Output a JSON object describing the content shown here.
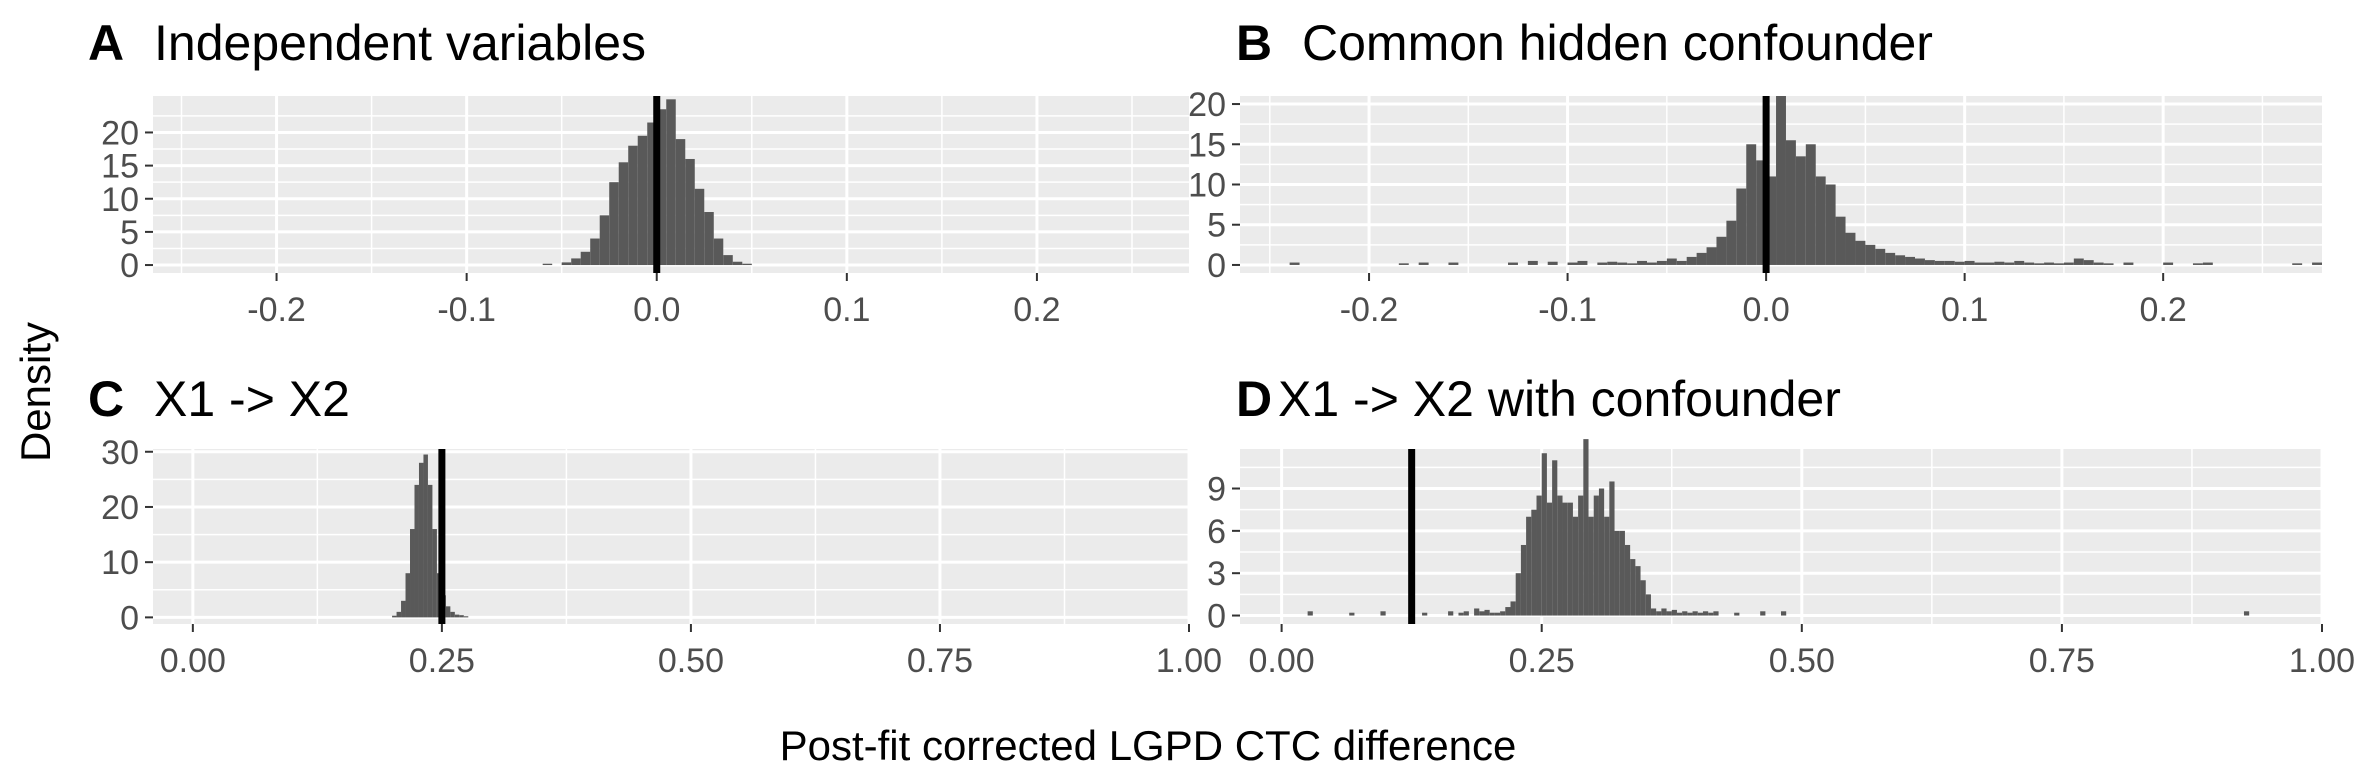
{
  "figure": {
    "xlabel": "Post-fit corrected LGPD CTC difference",
    "ylabel": "Density"
  },
  "chart_data": [
    {
      "type": "histogram",
      "tag": "A",
      "title": "Independent variables",
      "xlim": [
        -0.265,
        0.28
      ],
      "ylim": [
        -1.2,
        25.5
      ],
      "xticks": [
        -0.2,
        -0.1,
        0.0,
        0.1,
        0.2
      ],
      "xtick_labels": [
        "-0.2",
        "-0.1",
        "0.0",
        "0.1",
        "0.2"
      ],
      "yticks": [
        0,
        5,
        10,
        15,
        20
      ],
      "yminor": [
        2.5,
        7.5,
        12.5,
        17.5,
        22.5
      ],
      "xminor": [
        -0.25,
        -0.15,
        -0.05,
        0.05,
        0.15,
        0.25
      ],
      "vline": 0.0,
      "bin_width": 0.005,
      "bin_start": -0.06,
      "values": [
        0.2,
        0.0,
        0.4,
        1.0,
        2.0,
        4.0,
        7.5,
        12.5,
        15.5,
        18.0,
        19.5,
        21.5,
        23.5,
        25.0,
        19.0,
        16.0,
        11.5,
        8.0,
        4.0,
        1.5,
        0.5,
        0.2
      ],
      "grid": true
    },
    {
      "type": "histogram",
      "tag": "B",
      "title": "Common hidden confounder",
      "xlim": [
        -0.265,
        0.28
      ],
      "ylim": [
        -1.0,
        21.0
      ],
      "xticks": [
        -0.2,
        -0.1,
        0.0,
        0.1,
        0.2
      ],
      "xtick_labels": [
        "-0.2",
        "-0.1",
        "0.0",
        "0.1",
        "0.2"
      ],
      "yticks": [
        0,
        5,
        10,
        15,
        20
      ],
      "yminor": [
        2.5,
        7.5,
        12.5,
        17.5
      ],
      "xminor": [
        -0.25,
        -0.15,
        -0.05,
        0.05,
        0.15,
        0.25
      ],
      "vline": 0.0,
      "bin_width": 0.005,
      "bin_start": -0.24,
      "values": [
        0.3,
        0,
        0,
        0,
        0,
        0,
        0,
        0,
        0,
        0,
        0,
        0.2,
        0,
        0.3,
        0,
        0,
        0.3,
        0,
        0,
        0,
        0,
        0,
        0.3,
        0,
        0.5,
        0,
        0.4,
        0,
        0.3,
        0.5,
        0,
        0.3,
        0.4,
        0.3,
        0.2,
        0.5,
        0.3,
        0.5,
        0.8,
        0.5,
        1.0,
        1.5,
        2.2,
        3.5,
        5.5,
        9.5,
        15.0,
        13.0,
        11.0,
        21.0,
        15.5,
        13.5,
        15.0,
        11.0,
        10.0,
        6.0,
        4.0,
        3.0,
        2.5,
        2.0,
        1.5,
        1.2,
        1.0,
        0.8,
        0.6,
        0.5,
        0.5,
        0.4,
        0.5,
        0.3,
        0.3,
        0.4,
        0.3,
        0.5,
        0.3,
        0.2,
        0.3,
        0.2,
        0.3,
        0.8,
        0.6,
        0.3,
        0.2,
        0,
        0.3,
        0,
        0,
        0,
        0.3,
        0,
        0,
        0.2,
        0.3,
        0,
        0,
        0,
        0,
        0,
        0,
        0,
        0,
        0.2,
        0,
        0.3
      ],
      "grid": true
    },
    {
      "type": "histogram",
      "tag": "C",
      "title": "X1 -> X2",
      "xlim": [
        -0.04,
        1.0
      ],
      "ylim": [
        -1.2,
        30.5
      ],
      "xticks": [
        0.0,
        0.25,
        0.5,
        0.75,
        1.0
      ],
      "xtick_labels": [
        "0.00",
        "0.25",
        "0.50",
        "0.75",
        "1.00"
      ],
      "yticks": [
        0,
        10,
        20,
        30
      ],
      "yminor": [
        5,
        15,
        25
      ],
      "xminor": [
        0.125,
        0.375,
        0.625,
        0.875
      ],
      "vline": 0.25,
      "bin_width": 0.0045,
      "bin_start": 0.2,
      "values": [
        0.3,
        1.0,
        3.0,
        8.0,
        16.0,
        24.0,
        28.0,
        29.5,
        24.0,
        16.0,
        8.0,
        4.0,
        2.0,
        1.0,
        0.5,
        0.4,
        0.2
      ],
      "grid": true
    },
    {
      "type": "histogram",
      "tag": "D",
      "title": "X1 -> X2 with confounder",
      "xlim": [
        -0.04,
        1.0
      ],
      "ylim": [
        -0.6,
        11.8
      ],
      "xticks": [
        0.0,
        0.25,
        0.5,
        0.75,
        1.0
      ],
      "xtick_labels": [
        "0.00",
        "0.25",
        "0.50",
        "0.75",
        "1.00"
      ],
      "yticks": [
        0,
        3,
        6,
        9
      ],
      "yminor": [
        1.5,
        4.5,
        7.5,
        10.5
      ],
      "xminor": [
        0.125,
        0.375,
        0.625,
        0.875
      ],
      "vline": 0.125,
      "bin_width": 0.005,
      "bin_start": 0.025,
      "values": [
        0.3,
        0,
        0,
        0,
        0,
        0,
        0,
        0,
        0.2,
        0,
        0,
        0,
        0,
        0,
        0.3,
        0,
        0,
        0,
        0,
        0,
        0,
        0,
        0.2,
        0,
        0,
        0,
        0,
        0.3,
        0,
        0.2,
        0.3,
        0,
        0.5,
        0.3,
        0.4,
        0.2,
        0.2,
        0.3,
        0.6,
        1.0,
        3.0,
        5.0,
        7.0,
        7.5,
        8.5,
        11.5,
        8.0,
        11.0,
        8.5,
        8.0,
        8.0,
        7.0,
        8.5,
        12.5,
        7.0,
        8.5,
        9.0,
        7.0,
        9.5,
        6.0,
        6.0,
        5.0,
        4.0,
        3.5,
        2.5,
        1.5,
        0.5,
        0.3,
        0.5,
        0.3,
        0.4,
        0.2,
        0.3,
        0.2,
        0.3,
        0.2,
        0.3,
        0.2,
        0.3,
        0,
        0,
        0,
        0.2,
        0,
        0,
        0,
        0,
        0.3,
        0,
        0,
        0,
        0.3,
        0,
        0,
        0,
        0,
        0,
        0,
        0,
        0,
        0,
        0,
        0,
        0,
        0,
        0,
        0,
        0,
        0,
        0,
        0,
        0,
        0,
        0,
        0,
        0,
        0,
        0,
        0,
        0,
        0,
        0,
        0,
        0,
        0,
        0,
        0,
        0,
        0,
        0,
        0,
        0,
        0,
        0,
        0,
        0,
        0,
        0,
        0,
        0,
        0,
        0,
        0,
        0,
        0,
        0,
        0,
        0,
        0,
        0,
        0,
        0,
        0,
        0,
        0,
        0,
        0,
        0,
        0,
        0,
        0,
        0,
        0,
        0,
        0,
        0,
        0,
        0,
        0,
        0,
        0,
        0,
        0,
        0,
        0,
        0,
        0,
        0,
        0,
        0,
        0.3
      ],
      "grid": true
    }
  ]
}
